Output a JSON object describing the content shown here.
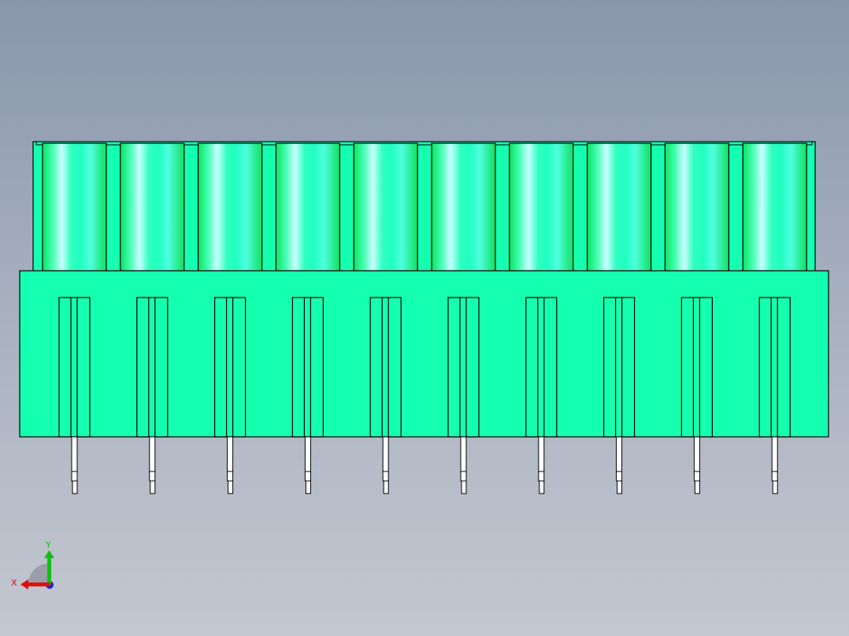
{
  "model": {
    "view": "front",
    "pole_count": 10,
    "colors": {
      "body": "#14ffb0",
      "cylinder_dark": "#0fe060",
      "cylinder_highlight": "#c8ffff",
      "edges": "#000000",
      "pins": "#ffffff",
      "background_top": "#8897ab",
      "background_bottom": "#c3c7d0"
    }
  },
  "triad": {
    "x_label": "X",
    "y_label": "Y",
    "x_color": "#e01010",
    "y_color": "#10c010",
    "z_color": "#1020e0"
  }
}
